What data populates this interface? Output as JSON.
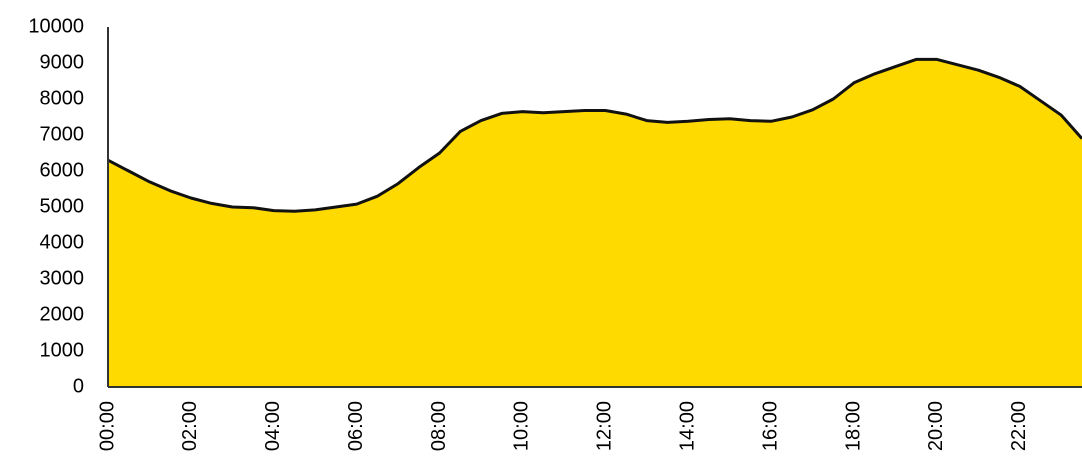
{
  "chart_data": {
    "type": "area",
    "categories": [
      "00:00",
      null,
      null,
      null,
      "02:00",
      null,
      null,
      null,
      "04:00",
      null,
      null,
      null,
      "06:00",
      null,
      null,
      null,
      "08:00",
      null,
      null,
      null,
      "10:00",
      null,
      null,
      null,
      "12:00",
      null,
      null,
      null,
      "14:00",
      null,
      null,
      null,
      "16:00",
      null,
      null,
      null,
      "18:00",
      null,
      null,
      null,
      "20:00",
      null,
      null,
      null,
      "22:00",
      null,
      null,
      null
    ],
    "values": [
      6300,
      6000,
      5700,
      5450,
      5250,
      5100,
      5000,
      4980,
      4900,
      4880,
      4920,
      5000,
      5080,
      5300,
      5650,
      6100,
      6500,
      7100,
      7400,
      7600,
      7650,
      7620,
      7650,
      7680,
      7680,
      7580,
      7400,
      7350,
      7380,
      7430,
      7450,
      7400,
      7380,
      7500,
      7700,
      8000,
      8450,
      8700,
      8900,
      9100,
      9100,
      8950,
      8800,
      8600,
      8350,
      7950,
      7550,
      6900
    ],
    "color": "#FFDA00",
    "ylim": [
      0,
      10000
    ],
    "yticks": [
      0,
      1000,
      2000,
      3000,
      4000,
      5000,
      6000,
      7000,
      8000,
      9000,
      10000
    ],
    "grid": false
  }
}
